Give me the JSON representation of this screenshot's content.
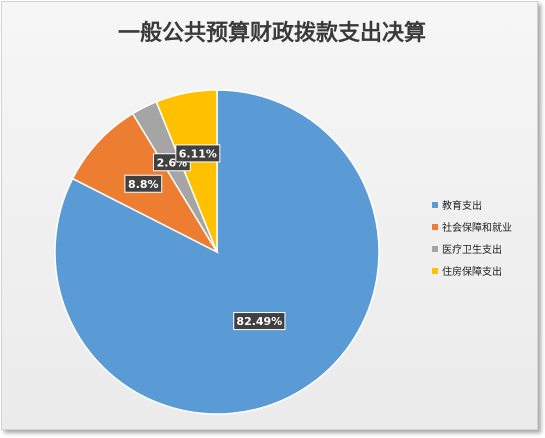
{
  "chart_data": {
    "type": "pie",
    "title": "一般公共预算财政拨款支出决算",
    "categories": [
      "教育支出",
      "社会保障和就业",
      "医疗卫生支出",
      "住房保障支出"
    ],
    "values": [
      82.49,
      8.8,
      2.6,
      6.11
    ],
    "data_labels": [
      "82.49%",
      "8.8%",
      "2.6%",
      "6.11%"
    ],
    "colors": [
      "#5b9bd5",
      "#ed7d31",
      "#a5a5a5",
      "#ffc000"
    ],
    "start_direction": "12 o'clock",
    "slice_order": "clockwise",
    "legend_position": "right"
  }
}
